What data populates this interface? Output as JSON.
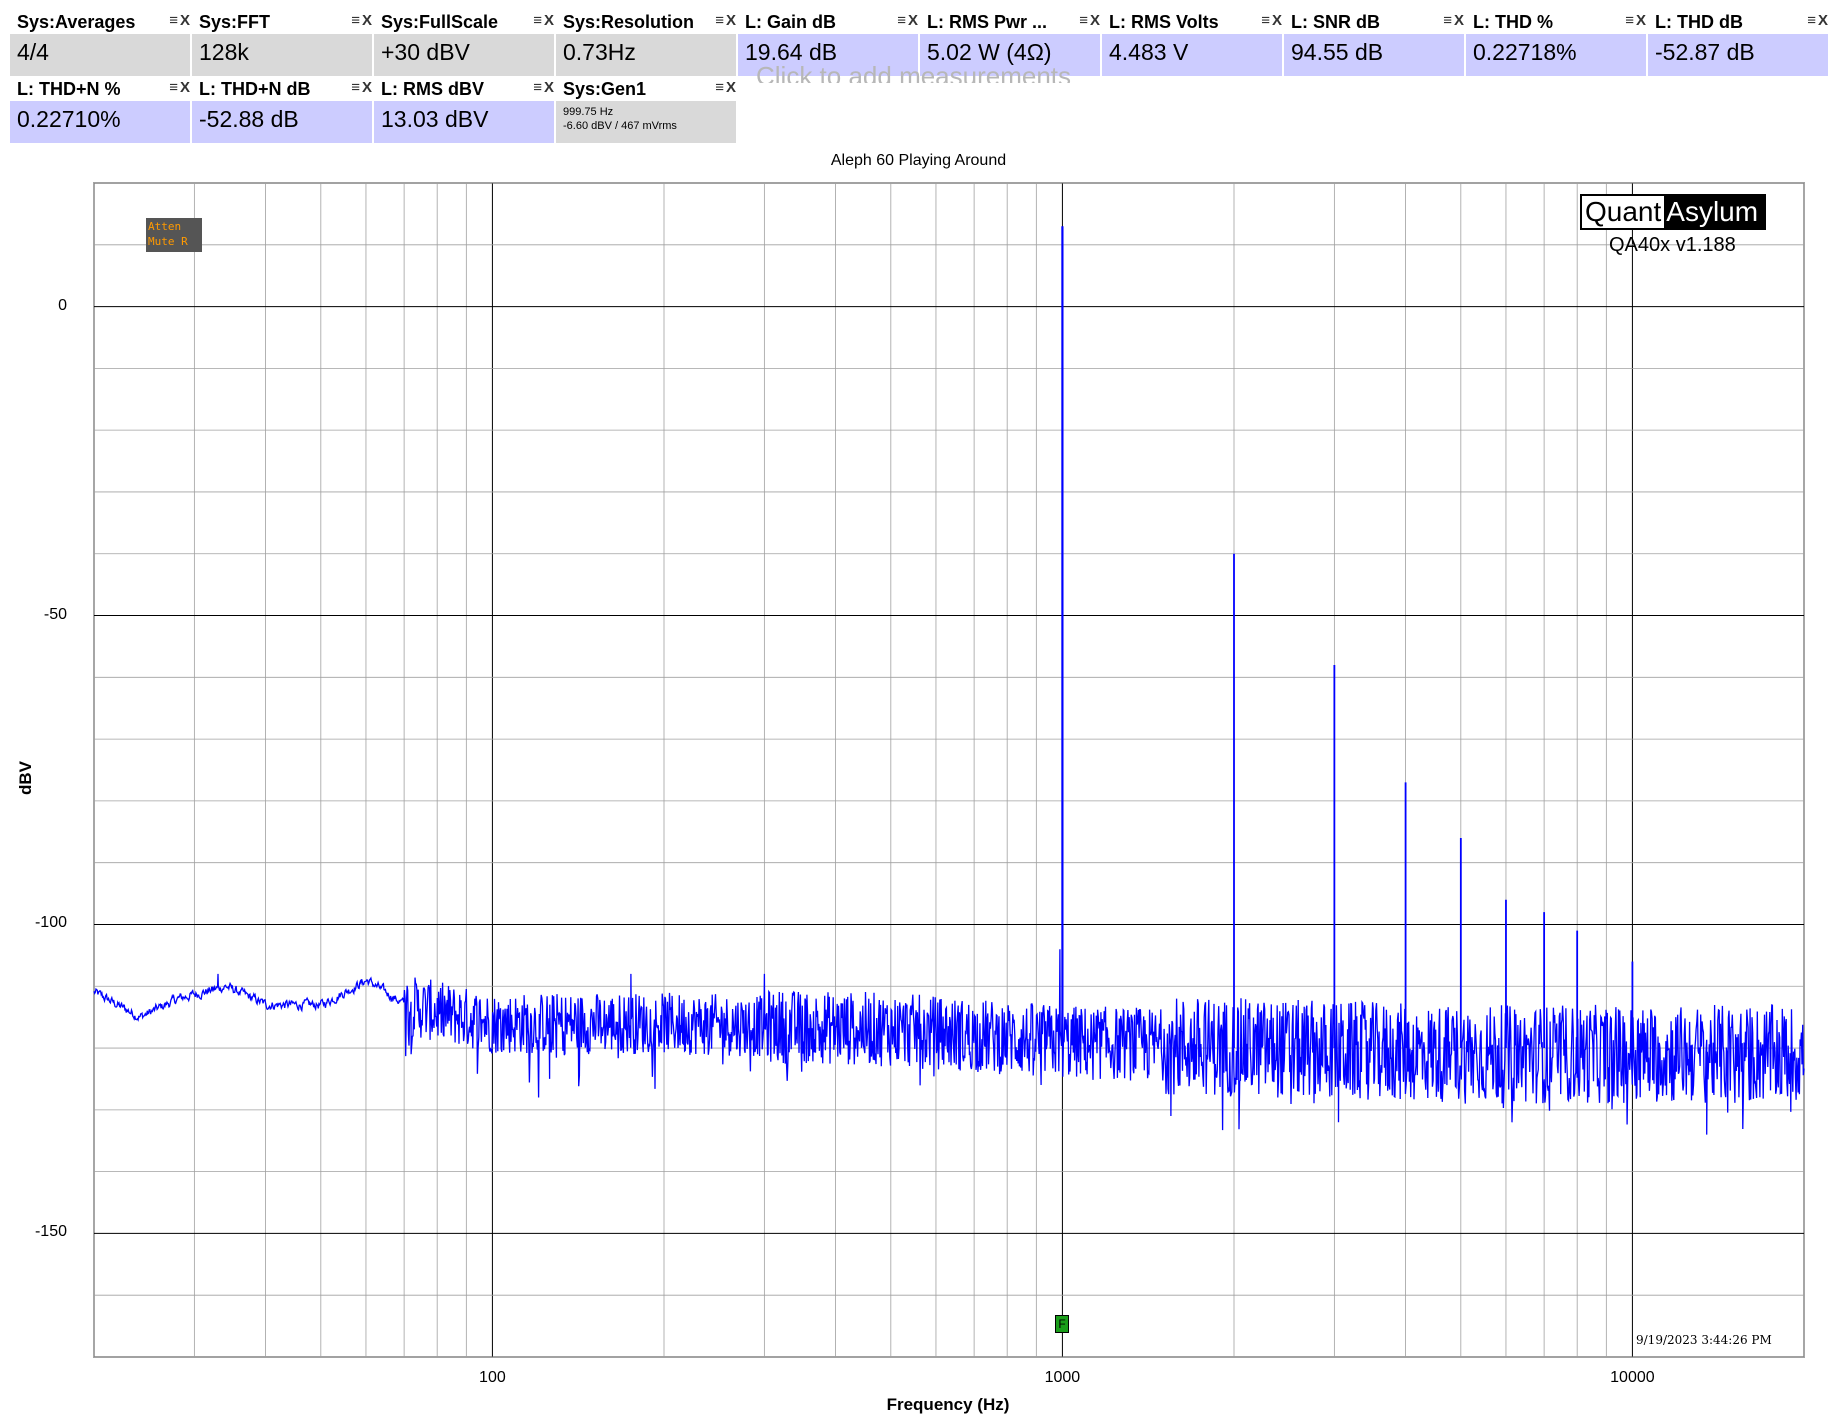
{
  "measurements": [
    {
      "name": "Sys:Averages",
      "value": "4/4",
      "kind": "sys"
    },
    {
      "name": "Sys:FFT",
      "value": "128k",
      "kind": "sys"
    },
    {
      "name": "Sys:FullScale",
      "value": "+30 dBV",
      "kind": "sys"
    },
    {
      "name": "Sys:Resolution",
      "value": "0.73Hz",
      "kind": "sys"
    },
    {
      "name": "L: Gain dB",
      "value": "19.64 dB",
      "kind": "l"
    },
    {
      "name": "L: RMS Pwr ...",
      "value": "5.02 W (4Ω)",
      "kind": "l"
    },
    {
      "name": "L: RMS Volts",
      "value": "4.483 V",
      "kind": "l"
    },
    {
      "name": "L: SNR dB",
      "value": "94.55 dB",
      "kind": "l"
    },
    {
      "name": "L: THD %",
      "value": "0.22718%",
      "kind": "l"
    },
    {
      "name": "L: THD dB",
      "value": "-52.87 dB",
      "kind": "l"
    },
    {
      "name": "L: THD+N %",
      "value": "0.22710%",
      "kind": "l"
    },
    {
      "name": "L: THD+N dB",
      "value": "-52.88 dB",
      "kind": "l"
    },
    {
      "name": "L: RMS dBV",
      "value": "13.03 dBV",
      "kind": "l"
    },
    {
      "name": "Sys:Gen1",
      "value_line1": "999.75 Hz",
      "value_line2": "-6.60 dBV  / 467 mVrms",
      "kind": "sys"
    }
  ],
  "tile_icons": {
    "menu": "≡",
    "close": "X"
  },
  "ghost_text": "Click to add measurements",
  "atten_lines": [
    "Atten",
    "Mute R"
  ],
  "logo": {
    "left": "Quant",
    "right": "Asylum"
  },
  "version": "QA40x v1.188",
  "timestamp": "9/19/2023 3:44:26 PM",
  "freq_marker": "F",
  "colors": {
    "trace": "#0000ff",
    "sys_tile": "#d9d9d9",
    "l_tile": "#ccccff",
    "grid": "#a0a0a0",
    "major_grid": "#000000"
  },
  "chart_data": {
    "type": "line",
    "title": "Aleph 60 Playing Around",
    "xlabel": "Frequency (Hz)",
    "ylabel": "dBV",
    "xscale": "log",
    "xlim": [
      20,
      20000
    ],
    "ylim": [
      -170,
      20
    ],
    "xticks": [
      100,
      1000,
      10000
    ],
    "xtick_labels": [
      "100",
      "1000",
      "10000"
    ],
    "yticks": [
      0,
      -50,
      -100,
      -150
    ],
    "ytick_labels": [
      "0",
      "-50",
      "-100",
      "-150"
    ],
    "grid": true,
    "series": [
      {
        "fundamental_hz": 1000,
        "fundamental_dbv": 13,
        "harmonics": [
          {
            "freq": 2000,
            "dbv": -40
          },
          {
            "freq": 3000,
            "dbv": -58
          },
          {
            "freq": 4000,
            "dbv": -77
          },
          {
            "freq": 5000,
            "dbv": -86
          },
          {
            "freq": 6000,
            "dbv": -96
          },
          {
            "freq": 7000,
            "dbv": -98
          },
          {
            "freq": 8000,
            "dbv": -101
          },
          {
            "freq": 10000,
            "dbv": -106
          }
        ],
        "noise_profile": [
          {
            "freq": 20,
            "dbv": -111
          },
          {
            "freq": 24,
            "dbv": -115
          },
          {
            "freq": 28,
            "dbv": -112
          },
          {
            "freq": 34,
            "dbv": -110
          },
          {
            "freq": 40,
            "dbv": -113
          },
          {
            "freq": 50,
            "dbv": -113
          },
          {
            "freq": 60,
            "dbv": -109
          },
          {
            "freq": 70,
            "dbv": -113
          },
          {
            "freq": 100,
            "dbv": -116
          },
          {
            "freq": 200,
            "dbv": -116
          },
          {
            "freq": 500,
            "dbv": -117
          },
          {
            "freq": 1000,
            "dbv": -119
          },
          {
            "freq": 5000,
            "dbv": -121
          },
          {
            "freq": 20000,
            "dbv": -121
          }
        ],
        "noise_spikes": [
          {
            "freq": 33,
            "dbv": -108
          },
          {
            "freq": 175,
            "dbv": -108
          },
          {
            "freq": 300,
            "dbv": -108
          },
          {
            "freq": 990,
            "dbv": -104
          },
          {
            "freq": 126,
            "dbv": -125
          },
          {
            "freq": 72,
            "dbv": -121
          },
          {
            "freq": 1550,
            "dbv": -131
          },
          {
            "freq": 3050,
            "dbv": -132
          },
          {
            "freq": 13500,
            "dbv": -134
          }
        ]
      }
    ]
  }
}
